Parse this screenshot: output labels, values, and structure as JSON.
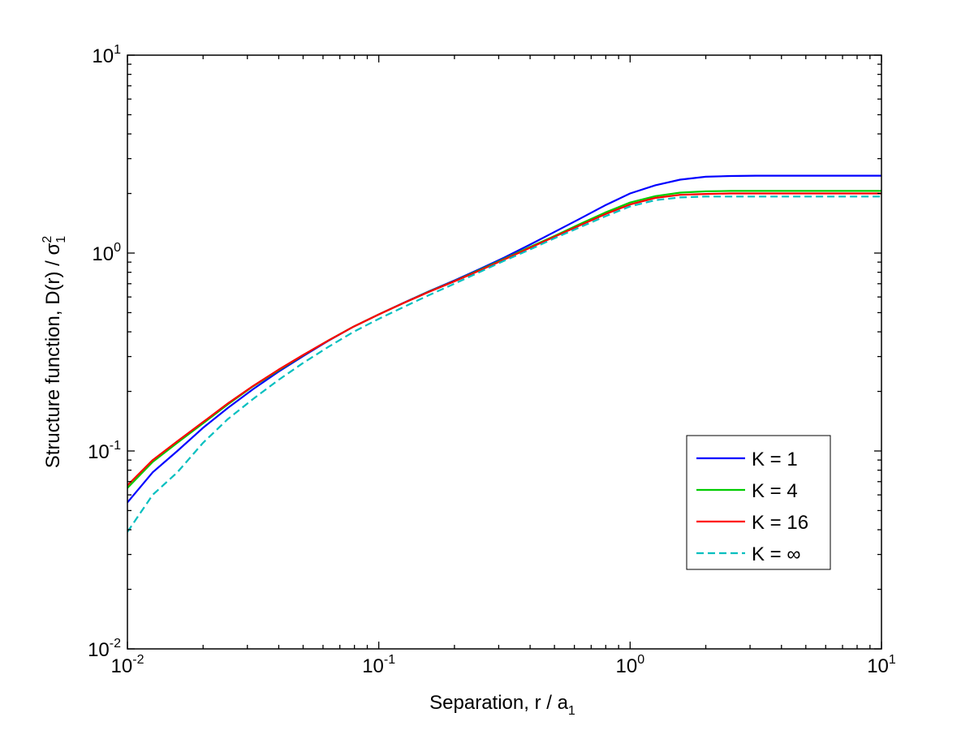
{
  "chart_data": {
    "type": "line",
    "xscale": "log",
    "yscale": "log",
    "xlim": [
      0.01,
      10
    ],
    "ylim": [
      0.01,
      10
    ],
    "grid": false,
    "legend_position": "lower-right",
    "xlabel": {
      "text": "Separation, r / a",
      "subscript": "1"
    },
    "ylabel": {
      "text": "Structure function, D(r) / σ",
      "superscript": "2",
      "subscript": "1"
    },
    "x_ticks": [
      {
        "value": 0.01,
        "base": "10",
        "exp": "-2"
      },
      {
        "value": 0.1,
        "base": "10",
        "exp": "-1"
      },
      {
        "value": 1,
        "base": "10",
        "exp": "0"
      },
      {
        "value": 10,
        "base": "10",
        "exp": "1"
      }
    ],
    "y_ticks": [
      {
        "value": 0.01,
        "base": "10",
        "exp": "-2"
      },
      {
        "value": 0.1,
        "base": "10",
        "exp": "-1"
      },
      {
        "value": 1,
        "base": "10",
        "exp": "0"
      },
      {
        "value": 10,
        "base": "10",
        "exp": "1"
      }
    ],
    "series": [
      {
        "name": "K = 1",
        "color": "#0000ff",
        "dash": "solid",
        "x": [
          0.01,
          0.0126,
          0.0158,
          0.02,
          0.0251,
          0.0316,
          0.0398,
          0.0501,
          0.0631,
          0.0794,
          0.1,
          0.126,
          0.158,
          0.2,
          0.251,
          0.316,
          0.398,
          0.501,
          0.631,
          0.794,
          1.0,
          1.26,
          1.58,
          2.0,
          2.51,
          3.16,
          3.98,
          5.01,
          6.31,
          7.94,
          10.0
        ],
        "y": [
          0.055,
          0.078,
          0.1,
          0.131,
          0.165,
          0.205,
          0.251,
          0.302,
          0.361,
          0.425,
          0.49,
          0.562,
          0.64,
          0.727,
          0.828,
          0.949,
          1.1,
          1.28,
          1.49,
          1.74,
          2.0,
          2.2,
          2.35,
          2.43,
          2.45,
          2.46,
          2.46,
          2.46,
          2.46,
          2.46,
          2.46
        ]
      },
      {
        "name": "K = 4",
        "color": "#00cc00",
        "dash": "solid",
        "x": [
          0.01,
          0.0126,
          0.0158,
          0.02,
          0.0251,
          0.0316,
          0.0398,
          0.0501,
          0.0631,
          0.0794,
          0.1,
          0.126,
          0.158,
          0.2,
          0.251,
          0.316,
          0.398,
          0.501,
          0.631,
          0.794,
          1.0,
          1.26,
          1.58,
          2.0,
          2.51,
          3.16,
          3.98,
          5.01,
          6.31,
          7.94,
          10.0
        ],
        "y": [
          0.065,
          0.088,
          0.11,
          0.138,
          0.172,
          0.212,
          0.255,
          0.305,
          0.362,
          0.425,
          0.49,
          0.56,
          0.638,
          0.722,
          0.82,
          0.936,
          1.07,
          1.22,
          1.4,
          1.6,
          1.8,
          1.94,
          2.02,
          2.05,
          2.06,
          2.06,
          2.06,
          2.06,
          2.06,
          2.06,
          2.06
        ]
      },
      {
        "name": "K = 16",
        "color": "#ff0000",
        "dash": "solid",
        "x": [
          0.01,
          0.0126,
          0.0158,
          0.02,
          0.0251,
          0.0316,
          0.0398,
          0.0501,
          0.0631,
          0.0794,
          0.1,
          0.126,
          0.158,
          0.2,
          0.251,
          0.316,
          0.398,
          0.501,
          0.631,
          0.794,
          1.0,
          1.26,
          1.58,
          2.0,
          2.51,
          3.16,
          3.98,
          5.01,
          6.31,
          7.94,
          10.0
        ],
        "y": [
          0.067,
          0.09,
          0.112,
          0.14,
          0.174,
          0.213,
          0.257,
          0.306,
          0.362,
          0.425,
          0.49,
          0.56,
          0.636,
          0.72,
          0.815,
          0.928,
          1.06,
          1.21,
          1.38,
          1.57,
          1.76,
          1.9,
          1.97,
          1.99,
          2.0,
          2.0,
          2.0,
          2.0,
          2.0,
          2.0,
          2.0
        ]
      },
      {
        "name": "K = ∞",
        "color": "#00bfbf",
        "dash": "dashed",
        "x": [
          0.01,
          0.0126,
          0.0158,
          0.02,
          0.0251,
          0.0316,
          0.0398,
          0.0501,
          0.0631,
          0.0794,
          0.1,
          0.126,
          0.158,
          0.2,
          0.251,
          0.316,
          0.398,
          0.501,
          0.631,
          0.794,
          1.0,
          1.26,
          1.58,
          2.0,
          2.51,
          3.16,
          3.98,
          5.01,
          6.31,
          7.94,
          10.0
        ],
        "y": [
          0.039,
          0.06,
          0.078,
          0.11,
          0.145,
          0.183,
          0.228,
          0.279,
          0.336,
          0.4,
          0.465,
          0.535,
          0.612,
          0.7,
          0.8,
          0.915,
          1.04,
          1.19,
          1.35,
          1.53,
          1.72,
          1.85,
          1.91,
          1.93,
          1.93,
          1.93,
          1.93,
          1.93,
          1.93,
          1.93,
          1.93
        ]
      }
    ]
  }
}
